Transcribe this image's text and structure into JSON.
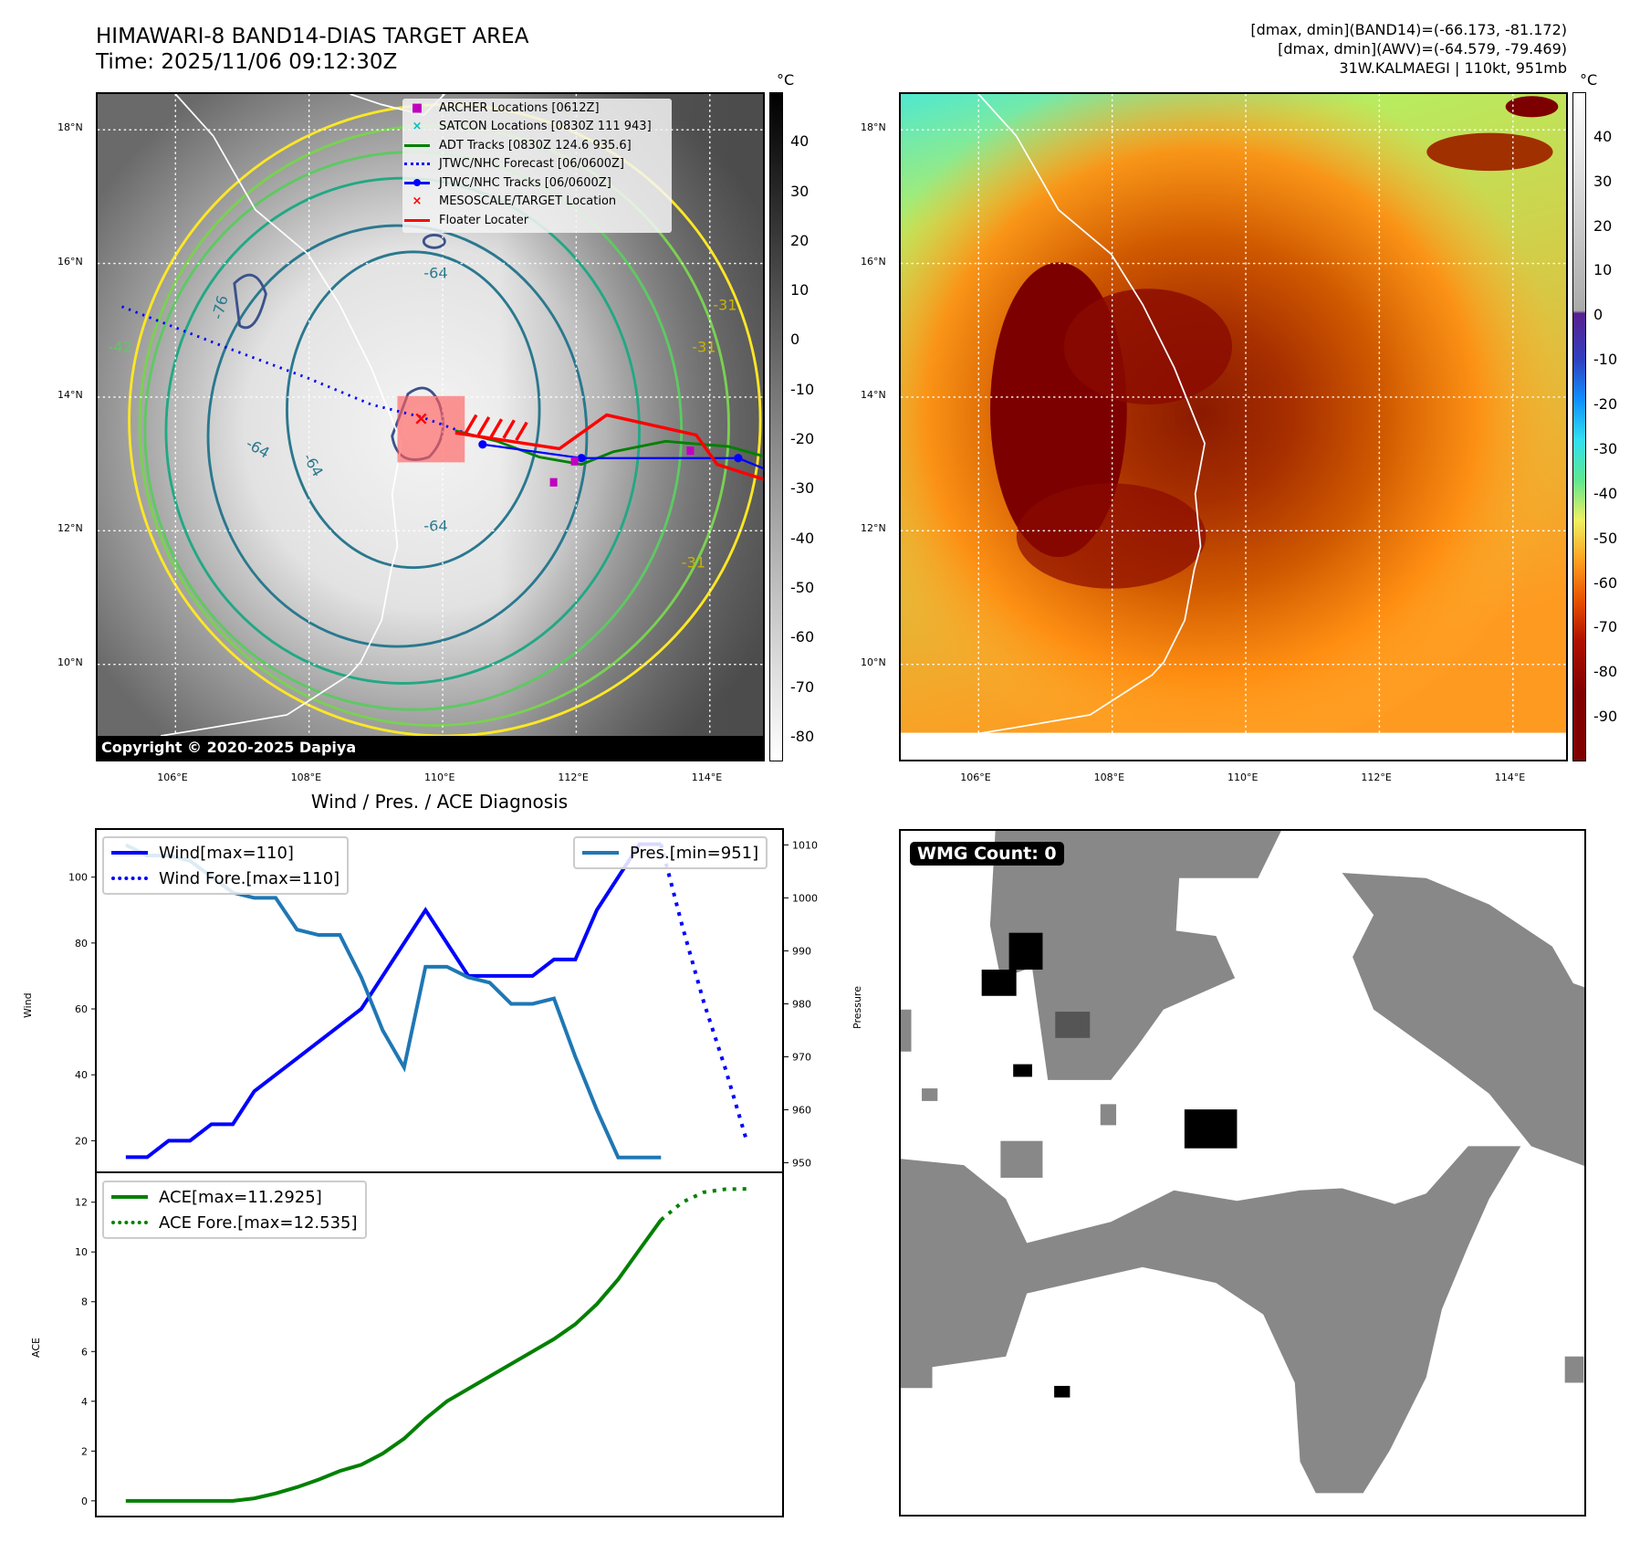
{
  "header": {
    "title": "HIMAWARI-8 BAND14-DIAS TARGET AREA",
    "time": "Time: 2025/11/06 09:12:30Z",
    "info_line1": "[dmax, dmin](BAND14)=(-66.173, -81.172)",
    "info_line2": "[dmax, dmin](AWV)=(-64.579, -79.469)",
    "info_line3": "31W.KALMAEGI | 110kt, 951mb"
  },
  "map": {
    "lat_labels": [
      "18°N",
      "16°N",
      "14°N",
      "12°N",
      "10°N"
    ],
    "lon_labels": [
      "106°E",
      "108°E",
      "110°E",
      "112°E",
      "114°E"
    ],
    "copyright": "Copyright © 2020-2025 Dapiya",
    "contour_labels": [
      "-76",
      "-64",
      "-64",
      "-64",
      "-64",
      "-31",
      "-31",
      "-31",
      "-42"
    ],
    "legend": [
      {
        "label": "ARCHER Locations [0612Z]",
        "marker": "■",
        "color": "#c000c0"
      },
      {
        "label": "SATCON Locations [0830Z 111 943]",
        "marker": "×",
        "color": "#00c0c0"
      },
      {
        "label": "ADT Tracks [0830Z 124.6 935.6]",
        "marker": "line",
        "color": "#008000"
      },
      {
        "label": "JTWC/NHC Forecast [06/0600Z]",
        "marker": "dots",
        "color": "#0000ff"
      },
      {
        "label": "JTWC/NHC Tracks [06/0600Z]",
        "marker": "line-dot",
        "color": "#0000ff"
      },
      {
        "label": "MESOSCALE/TARGET Location",
        "marker": "×",
        "color": "#ff0000"
      },
      {
        "label": "Floater Locater",
        "marker": "line",
        "color": "#ff0000"
      }
    ]
  },
  "colorbar_left": {
    "unit": "°C",
    "ticks": [
      40,
      30,
      20,
      10,
      0,
      -10,
      -20,
      -30,
      -40,
      -50,
      -60,
      -70,
      -80
    ],
    "range": [
      -85,
      50
    ]
  },
  "colorbar_right": {
    "unit": "°C",
    "ticks": [
      40,
      30,
      20,
      10,
      0,
      -10,
      -20,
      -30,
      -40,
      -50,
      -60,
      -70,
      -80,
      -90
    ],
    "range": [
      -100,
      50
    ]
  },
  "wmg": {
    "label": "WMG Count: 0"
  },
  "chart_data": [
    {
      "type": "line",
      "title": "Wind / Pres. / ACE Diagnosis",
      "ylabel": "Wind",
      "ylabel_right": "Pressure",
      "xlim": [
        -1.4,
        30.7
      ],
      "ylim": [
        10.4,
        114.6
      ],
      "ylim_right": [
        948.2,
        1013
      ],
      "yticks": [
        20,
        40,
        60,
        80,
        100
      ],
      "yticks_right": [
        950,
        960,
        970,
        980,
        990,
        1000,
        1010
      ],
      "series": [
        {
          "name": "Wind[max=110]",
          "color": "#0000ff",
          "style": "solid",
          "axis": "left",
          "x": [
            0,
            1,
            2,
            3,
            4,
            5,
            6,
            7,
            8,
            9,
            10,
            11,
            12,
            13,
            14,
            15,
            16,
            17,
            18,
            19,
            20,
            21,
            22,
            23,
            24,
            25
          ],
          "values": [
            15,
            15,
            20,
            20,
            25,
            25,
            35,
            40,
            45,
            50,
            55,
            60,
            70,
            80,
            90,
            80,
            70,
            70,
            70,
            70,
            75,
            75,
            90,
            100,
            110,
            110
          ]
        },
        {
          "name": "Wind Fore.[max=110]",
          "color": "#0000ff",
          "style": "dotted",
          "axis": "left",
          "x": [
            25,
            26,
            27,
            28,
            29
          ],
          "values": [
            110,
            85,
            62,
            42,
            20
          ]
        },
        {
          "name": "Pres.[min=951]",
          "color": "#1f77b4",
          "style": "solid",
          "axis": "right",
          "x": [
            0,
            1,
            2,
            3,
            4,
            5,
            6,
            7,
            8,
            9,
            10,
            11,
            12,
            13,
            14,
            15,
            16,
            17,
            18,
            19,
            20,
            21,
            22,
            23,
            24,
            25
          ],
          "values": [
            1010,
            1008,
            1008,
            1007,
            1004,
            1001,
            1000,
            1000,
            994,
            993,
            993,
            985,
            975,
            968,
            987,
            987,
            985,
            984,
            980,
            980,
            981,
            970,
            960,
            951,
            951,
            951
          ]
        }
      ]
    },
    {
      "type": "line",
      "ylabel": "ACE",
      "xlim": [
        -1.4,
        30.7
      ],
      "ylim": [
        -0.63,
        13.2
      ],
      "yticks": [
        0,
        2,
        4,
        6,
        8,
        10,
        12
      ],
      "series": [
        {
          "name": "ACE[max=11.2925]",
          "color": "#008000",
          "style": "solid",
          "x": [
            0,
            1,
            2,
            3,
            4,
            5,
            6,
            7,
            8,
            9,
            10,
            11,
            12,
            13,
            14,
            15,
            16,
            17,
            18,
            19,
            20,
            21,
            22,
            23,
            24,
            25
          ],
          "values": [
            0,
            0,
            0,
            0,
            0,
            0,
            0.1,
            0.3,
            0.55,
            0.85,
            1.2,
            1.45,
            1.9,
            2.5,
            3.3,
            4.0,
            4.5,
            5.0,
            5.5,
            6.0,
            6.5,
            7.1,
            7.9,
            8.9,
            10.1,
            11.29
          ]
        },
        {
          "name": "ACE Fore.[max=12.535]",
          "color": "#008000",
          "style": "dotted",
          "x": [
            25,
            26,
            27,
            28,
            29
          ],
          "values": [
            11.29,
            12.0,
            12.4,
            12.52,
            12.535
          ]
        }
      ]
    }
  ]
}
